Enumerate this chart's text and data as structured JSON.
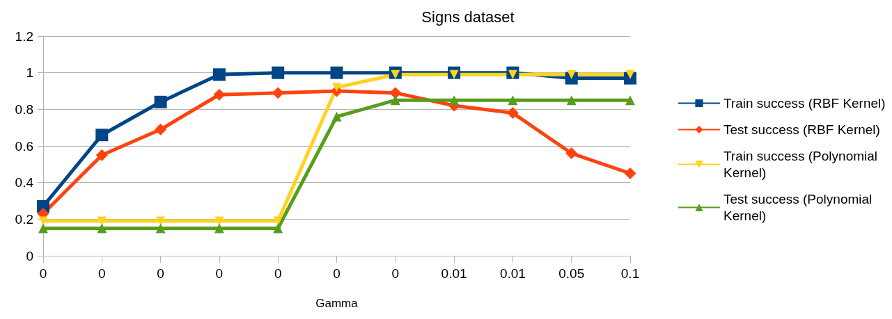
{
  "chart_data": {
    "type": "line",
    "title": "Signs dataset",
    "xlabel": "Gamma",
    "categories": [
      "0",
      "0",
      "0",
      "0",
      "0",
      "0",
      "0",
      "0.01",
      "0.01",
      "0.05",
      "0.1"
    ],
    "series": [
      {
        "name": "Train success (RBF Kernel)",
        "color": "#004586",
        "marker": "square",
        "values": [
          0.27,
          0.66,
          0.84,
          0.99,
          1.0,
          1.0,
          1.0,
          1.0,
          1.0,
          0.97,
          0.97
        ]
      },
      {
        "name": "Test success (RBF Kernel)",
        "color": "#ff420e",
        "marker": "diamond",
        "values": [
          0.23,
          0.55,
          0.69,
          0.88,
          0.89,
          0.9,
          0.89,
          0.82,
          0.78,
          0.56,
          0.45
        ]
      },
      {
        "name": "Train success (Polynomial Kernel)",
        "color": "#ffd320",
        "marker": "triangle-down",
        "values": [
          0.19,
          0.19,
          0.19,
          0.19,
          0.19,
          0.92,
          0.99,
          0.99,
          0.99,
          0.99,
          0.99
        ]
      },
      {
        "name": "Test success (Polynomial Kernel)",
        "color": "#579d1c",
        "marker": "triangle",
        "values": [
          0.15,
          0.15,
          0.15,
          0.15,
          0.15,
          0.76,
          0.85,
          0.85,
          0.85,
          0.85,
          0.85
        ]
      }
    ],
    "ylim": [
      0,
      1.2
    ],
    "yticks": [
      0,
      0.2,
      0.4,
      0.6,
      0.8,
      1,
      1.2
    ],
    "grid": "y",
    "legend": "right",
    "line_style": "solid"
  }
}
